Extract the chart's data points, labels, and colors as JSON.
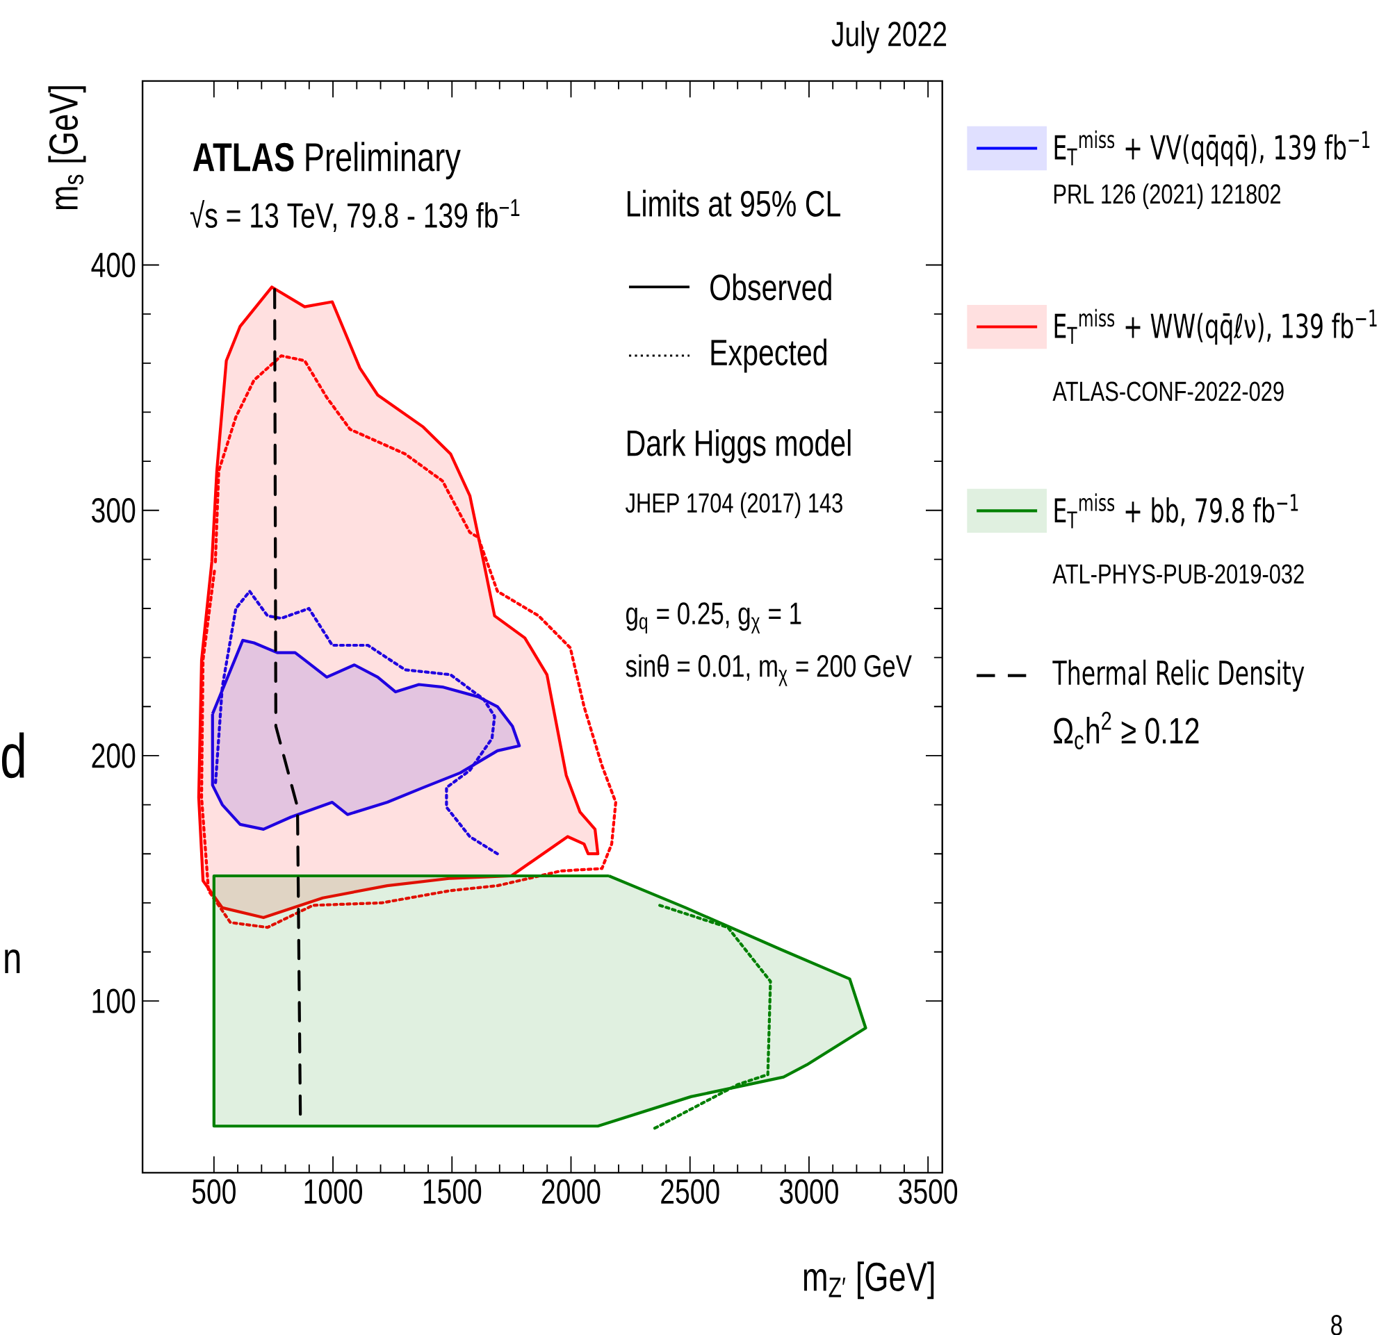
{
  "chart_data": {
    "type": "line",
    "xlabel": "m$_{Z′}$ [GeV]",
    "ylabel": "m$_{s}$ [GeV]",
    "xlim": [
      200,
      3560
    ],
    "ylim": [
      30,
      475
    ],
    "xticks": [
      500,
      1000,
      1500,
      2000,
      2500,
      3000,
      3500
    ],
    "yticks": [
      100,
      200,
      300,
      400
    ],
    "grid": false,
    "legend": "right",
    "marker": "none",
    "series": [
      {
        "type": "area",
        "name": "E$_{T}$$^{miss}$ + VV(qq̄qq̄), 139 fb$^{−1}$",
        "color": "#0000ff",
        "line_style": "solid",
        "x": [
          494,
          621,
          668,
          766,
          841,
          881,
          974,
          1090,
          1188,
          1263,
          1361,
          1460,
          1610,
          1691,
          1754,
          1783,
          1691,
          1535,
          1379,
          1228,
          1061,
          997,
          824,
          708,
          610,
          535,
          494,
          494
        ],
        "values": [
          217,
          247,
          246,
          242,
          242,
          239,
          232,
          237,
          232,
          226,
          229,
          228,
          224,
          220,
          212,
          204,
          202,
          193,
          187,
          181,
          176,
          181,
          175,
          170,
          172,
          180,
          188,
          217
        ]
      },
      {
        "color": "#0000ff",
        "line_style": "dotted",
        "x": [
          1691,
          1575,
          1477,
          1477,
          1575,
          1668,
          1679,
          1633,
          1494,
          1303,
          1147,
          997,
          899,
          783,
          725,
          650,
          592,
          535,
          506
        ],
        "values": [
          160,
          167,
          179,
          187,
          194,
          207,
          216,
          223,
          233,
          235,
          245,
          245,
          260,
          256,
          257,
          267,
          260,
          228,
          188
        ]
      },
      {
        "type": "area",
        "name": "E$_{T}$$^{miss}$ + WW(qq̄ℓν), 139 fb$^{−1}$",
        "color": "#ff0000",
        "line_style": "solid",
        "x": [
          491,
          512,
          552,
          610,
          743,
          881,
          997,
          1113,
          1188,
          1379,
          1494,
          1575,
          1633,
          1679,
          1806,
          1899,
          1980,
          2038,
          2101,
          2113,
          2072,
          2055,
          1986,
          1749,
          1494,
          1228,
          957,
          708,
          535,
          454,
          436,
          448,
          491
        ],
        "values": [
          279,
          316,
          361,
          375,
          391,
          383,
          385,
          358,
          347,
          334,
          323,
          306,
          279,
          257,
          248,
          233,
          192,
          177,
          170,
          160,
          160,
          164,
          167,
          151,
          150,
          147,
          142,
          134,
          138,
          149,
          183,
          239,
          279
        ]
      },
      {
        "color": "#ff0000",
        "line_style": "dotted",
        "x": [
          506,
          520,
          592,
          668,
          783,
          881,
          974,
          1072,
          1303,
          1460,
          1575,
          1610,
          1691,
          1864,
          1997,
          2055,
          2130,
          2188,
          2171,
          2130,
          1957,
          1691,
          1494,
          1205,
          916,
          725,
          569,
          477,
          448,
          454,
          503
        ],
        "values": [
          279,
          316,
          338,
          353,
          363,
          361,
          346,
          333,
          323,
          312,
          291,
          289,
          267,
          257,
          244,
          220,
          196,
          181,
          164,
          154,
          153,
          147,
          145,
          140,
          139,
          130,
          132,
          145,
          183,
          239,
          276
        ]
      },
      {
        "type": "area",
        "name": "E$_{T}$$^{miss}$ + bb, 79.8 fb$^{−1}$",
        "color": "#008000",
        "line_style": "solid",
        "x": [
          2159,
          2482,
          2882,
          3171,
          3238,
          2991,
          2893,
          2504,
          2113,
          500,
          500,
          2159
        ],
        "values": [
          151,
          138,
          121,
          109,
          89,
          74,
          69,
          61,
          49,
          49,
          151,
          151
        ]
      },
      {
        "color": "#008000",
        "line_style": "dotted",
        "x": [
          2373,
          2659,
          2838,
          2827,
          2702,
          2349
        ],
        "values": [
          139,
          130,
          108,
          70,
          66,
          48
        ]
      },
      {
        "name": "Thermal Relic Density",
        "color": "#000000",
        "line_style": "dashed",
        "x": [
          755,
          760,
          851,
          863
        ],
        "values": [
          390,
          212,
          179,
          53
        ]
      }
    ],
    "annotations": [
      "July 2022",
      "**ATLAS** Preliminary",
      "√s = 13 TeV, 79.8 - 139 fb$^{−1}$",
      "Limits at 95% CL",
      "Observed",
      "Expected",
      "Dark Higgs model",
      "JHEP 1704 (2017) 143",
      "g$_{q}$ = 0.25, g$_{χ}$ = 1",
      "sinθ = 0.01, m$_{χ}$ = 200 GeV",
      "PRL 126 (2021) 121802",
      "ATLAS-CONF-2022-029",
      "ATL-PHYS-PUB-2019-032",
      "Ω$_{c}$h$^{2}$ ≥ 0.12",
      "d",
      "n",
      "8"
    ]
  }
}
